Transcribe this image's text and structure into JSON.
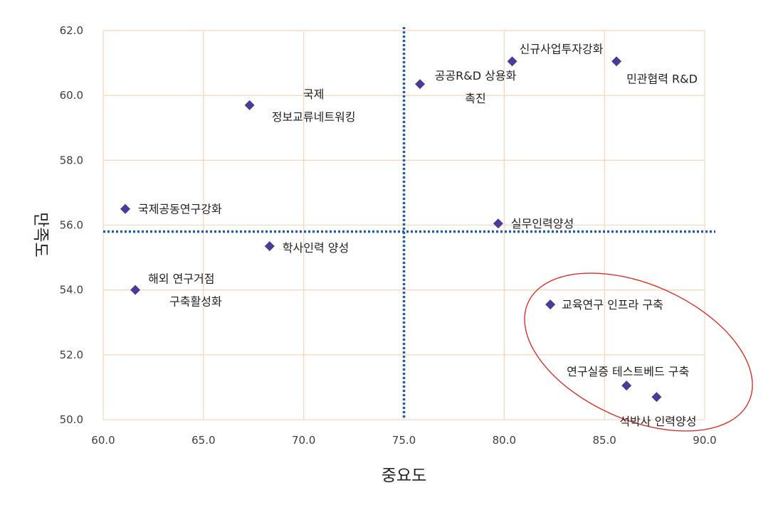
{
  "chart_data": {
    "type": "scatter",
    "xlabel": "중요도",
    "ylabel": "만족도",
    "xlim": [
      60,
      90
    ],
    "ylim": [
      50,
      62
    ],
    "xticks": [
      "60.0",
      "65.0",
      "70.0",
      "75.0",
      "80.0",
      "85.0",
      "90.0"
    ],
    "yticks": [
      "50.0",
      "52.0",
      "54.0",
      "56.0",
      "58.0",
      "60.0",
      "62.0"
    ],
    "grid": true,
    "mean_lines": {
      "x": 75.0,
      "y": 55.8
    },
    "marker_color": "#4B3A96",
    "grid_color": "#F8D8BC",
    "mean_line_color": "#1F5FAA",
    "highlight_color": "#D9302A",
    "points": [
      {
        "x": 67.3,
        "y": 59.7,
        "label": [
          "국제",
          "정보교류네트워킹"
        ]
      },
      {
        "x": 75.8,
        "y": 60.35,
        "label": [
          "공공R&D 상용화",
          "촉진"
        ]
      },
      {
        "x": 80.4,
        "y": 61.05,
        "label": [
          "신규사업투자강화"
        ]
      },
      {
        "x": 85.6,
        "y": 61.05,
        "label": [
          "민관협력 R&D"
        ]
      },
      {
        "x": 61.1,
        "y": 56.5,
        "label": [
          "국제공동연구강화"
        ]
      },
      {
        "x": 79.7,
        "y": 56.05,
        "label": [
          "실무인력양성"
        ]
      },
      {
        "x": 68.3,
        "y": 55.35,
        "label": [
          "학사인력 양성"
        ]
      },
      {
        "x": 61.6,
        "y": 54.0,
        "label": [
          "해외 연구거점",
          "구축활성화"
        ]
      },
      {
        "x": 82.3,
        "y": 53.55,
        "label": [
          "교육연구 인프라 구축"
        ]
      },
      {
        "x": 86.1,
        "y": 51.05,
        "label": [
          "연구실증 테스트베드 구축"
        ]
      },
      {
        "x": 87.6,
        "y": 50.7,
        "label": [
          "석박사 인력양성"
        ]
      }
    ],
    "highlight_group": [
      "교육연구 인프라 구축",
      "연구실증 테스트베드 구축",
      "석박사 인력양성"
    ]
  }
}
